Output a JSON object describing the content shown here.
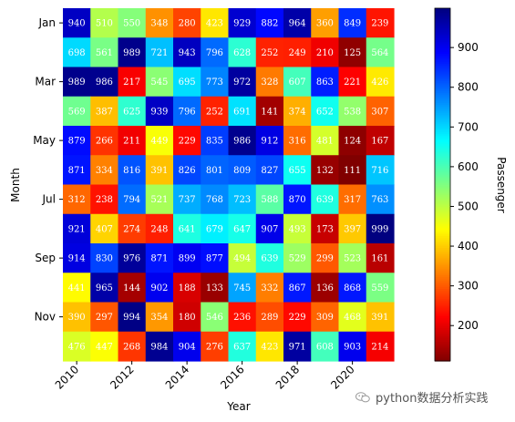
{
  "chart_data": {
    "type": "heatmap",
    "colormap": "jet_r",
    "x_ticks": [
      "2010",
      "2012",
      "2014",
      "2016",
      "2018",
      "2020"
    ],
    "y_ticks": [
      "Jan",
      "Mar",
      "May",
      "Jul",
      "Sep",
      "Nov"
    ],
    "xlabel": "Year",
    "ylabel": "Month",
    "colorbar_label": "Passenger",
    "colorbar_ticks": [
      200,
      300,
      400,
      500,
      600,
      700,
      800,
      900
    ],
    "vmin": 111,
    "vmax": 999,
    "values": [
      [
        940,
        510,
        550,
        348,
        280,
        423,
        929,
        882,
        964,
        360,
        849,
        239
      ],
      [
        698,
        561,
        989,
        721,
        943,
        796,
        628,
        252,
        249,
        210,
        125,
        564
      ],
      [
        989,
        986,
        217,
        545,
        695,
        773,
        972,
        328,
        607,
        863,
        221,
        426
      ],
      [
        569,
        387,
        625,
        939,
        796,
        252,
        691,
        141,
        374,
        652,
        538,
        307
      ],
      [
        879,
        266,
        211,
        449,
        229,
        835,
        986,
        912,
        316,
        481,
        124,
        167
      ],
      [
        871,
        334,
        816,
        391,
        826,
        801,
        809,
        827,
        655,
        132,
        111,
        716
      ],
      [
        312,
        238,
        794,
        521,
        737,
        768,
        723,
        588,
        870,
        639,
        317,
        763
      ],
      [
        921,
        407,
        274,
        248,
        641,
        679,
        647,
        907,
        493,
        173,
        397,
        999
      ],
      [
        914,
        830,
        976,
        871,
        899,
        877,
        494,
        639,
        529,
        299,
        523,
        161
      ],
      [
        441,
        965,
        144,
        902,
        188,
        133,
        745,
        332,
        867,
        136,
        868,
        559
      ],
      [
        390,
        297,
        994,
        354,
        180,
        546,
        236,
        289,
        229,
        309,
        468,
        391
      ],
      [
        476,
        447,
        268,
        984,
        904,
        276,
        637,
        423,
        971,
        608,
        903,
        214
      ]
    ]
  },
  "watermark": {
    "icon": "wechat-icon",
    "text": "python数据分析实践"
  }
}
